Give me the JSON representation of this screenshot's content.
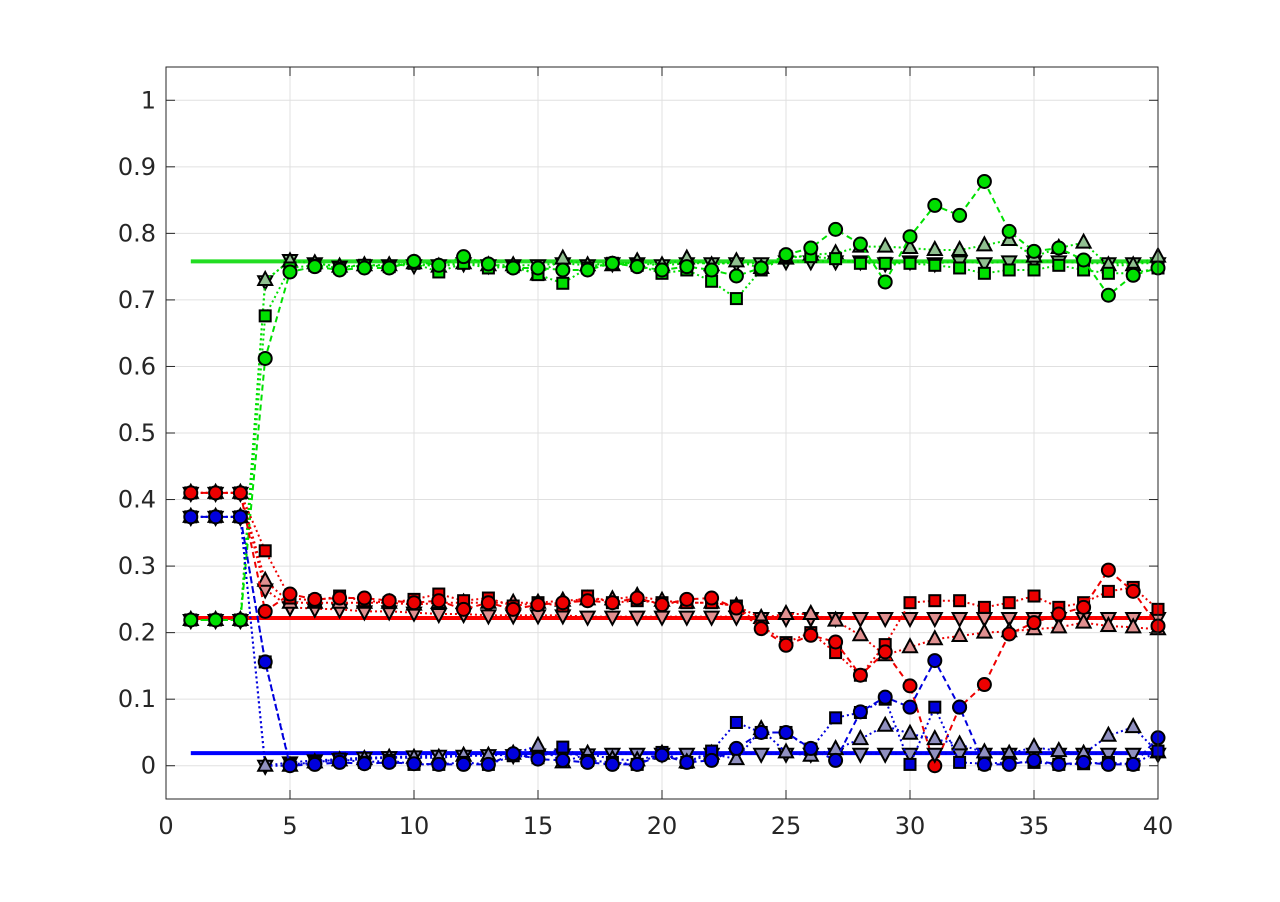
{
  "chart_data": {
    "type": "line",
    "title": "",
    "xlabel": "",
    "ylabel": "",
    "xlim": [
      0,
      40
    ],
    "ylim": [
      -0.05,
      1.05
    ],
    "grid": true,
    "x_ticks": [
      0,
      5,
      10,
      15,
      20,
      25,
      30,
      35,
      40
    ],
    "x_tick_labels": [
      "0",
      "5",
      "10",
      "15",
      "20",
      "25",
      "30",
      "35",
      "40"
    ],
    "y_ticks": [
      0,
      0.1,
      0.2,
      0.3,
      0.4,
      0.5,
      0.6,
      0.7,
      0.8,
      0.9,
      1
    ],
    "y_tick_labels": [
      "0",
      "0.1",
      "0.2",
      "0.3",
      "0.4",
      "0.5",
      "0.6",
      "0.7",
      "0.8",
      "0.9",
      "1"
    ],
    "colors": {
      "green": "#00e000",
      "red": "#ee0000",
      "blue": "#0000dd",
      "green_line": "#22dd22",
      "red_line": "#ff0000",
      "blue_line": "#0000ff",
      "green_light": "#90c090",
      "red_light": "#e09090",
      "blue_light": "#9090c0",
      "axis": "#262626",
      "grid": "#e0e0e0"
    },
    "reference_lines": [
      {
        "color": "green_line",
        "value": 0.758,
        "x": [
          1,
          40
        ]
      },
      {
        "color": "red_line",
        "value": 0.222,
        "x": [
          1,
          40
        ]
      },
      {
        "color": "blue_line",
        "value": 0.019,
        "x": [
          1,
          40
        ]
      }
    ],
    "series": [
      {
        "color": "green",
        "marker": "circle",
        "fill": "green",
        "dash": "dash",
        "values": [
          0.219,
          0.219,
          0.219,
          0.612,
          0.742,
          0.75,
          0.745,
          0.748,
          0.748,
          0.758,
          0.752,
          0.765,
          0.754,
          0.748,
          0.748,
          0.745,
          0.745,
          0.755,
          0.75,
          0.745,
          0.75,
          0.745,
          0.736,
          0.748,
          0.768,
          0.778,
          0.806,
          0.784,
          0.727,
          0.795,
          0.842,
          0.827,
          0.878,
          0.803,
          0.773,
          0.778,
          0.76,
          0.707,
          0.737,
          0.748
        ]
      },
      {
        "color": "green",
        "marker": "square",
        "fill": "green",
        "dash": "dot",
        "values": [
          0.219,
          0.219,
          0.219,
          0.676,
          0.748,
          0.752,
          0.748,
          0.752,
          0.75,
          0.755,
          0.742,
          0.755,
          0.748,
          0.75,
          0.738,
          0.725,
          0.748,
          0.755,
          0.752,
          0.74,
          0.745,
          0.728,
          0.702,
          0.745,
          0.765,
          0.765,
          0.762,
          0.755,
          0.755,
          0.755,
          0.752,
          0.748,
          0.74,
          0.745,
          0.745,
          0.752,
          0.745,
          0.74,
          0.74,
          0.748
        ]
      },
      {
        "color": "green",
        "marker": "triangle-up",
        "fill": "green_light",
        "dash": "dot",
        "values": [
          0.219,
          0.219,
          0.219,
          0.73,
          0.758,
          0.755,
          0.75,
          0.752,
          0.752,
          0.755,
          0.75,
          0.755,
          0.752,
          0.752,
          0.738,
          0.762,
          0.752,
          0.752,
          0.758,
          0.752,
          0.762,
          0.752,
          0.758,
          0.748,
          0.762,
          0.768,
          0.77,
          0.78,
          0.78,
          0.778,
          0.775,
          0.775,
          0.782,
          0.79,
          0.765,
          0.778,
          0.786,
          0.752,
          0.752,
          0.765
        ]
      },
      {
        "color": "green",
        "marker": "triangle-down",
        "fill": "green_light",
        "dash": "dot",
        "values": [
          0.219,
          0.219,
          0.219,
          0.728,
          0.76,
          0.755,
          0.75,
          0.752,
          0.752,
          0.752,
          0.752,
          0.755,
          0.752,
          0.752,
          0.752,
          0.755,
          0.752,
          0.755,
          0.755,
          0.752,
          0.755,
          0.755,
          0.755,
          0.755,
          0.758,
          0.758,
          0.758,
          0.758,
          0.755,
          0.758,
          0.755,
          0.758,
          0.755,
          0.758,
          0.758,
          0.758,
          0.755,
          0.755,
          0.755,
          0.755
        ]
      },
      {
        "color": "red",
        "marker": "circle",
        "fill": "red",
        "dash": "dash",
        "values": [
          0.41,
          0.41,
          0.41,
          0.232,
          0.258,
          0.25,
          0.252,
          0.252,
          0.248,
          0.245,
          0.248,
          0.235,
          0.245,
          0.235,
          0.242,
          0.245,
          0.248,
          0.245,
          0.252,
          0.242,
          0.25,
          0.252,
          0.237,
          0.206,
          0.181,
          0.196,
          0.186,
          0.136,
          0.171,
          0.12,
          0.0,
          0.088,
          0.122,
          0.198,
          0.215,
          0.228,
          0.238,
          0.294,
          0.262,
          0.21
        ]
      },
      {
        "color": "red",
        "marker": "square",
        "fill": "red",
        "dash": "dot",
        "values": [
          0.41,
          0.41,
          0.41,
          0.323,
          0.252,
          0.248,
          0.255,
          0.248,
          0.245,
          0.25,
          0.258,
          0.248,
          0.252,
          0.24,
          0.245,
          0.24,
          0.255,
          0.245,
          0.248,
          0.245,
          0.245,
          0.245,
          0.24,
          0.21,
          0.185,
          0.2,
          0.17,
          0.136,
          0.182,
          0.245,
          0.248,
          0.248,
          0.238,
          0.245,
          0.255,
          0.238,
          0.245,
          0.262,
          0.268,
          0.235
        ]
      },
      {
        "color": "red",
        "marker": "triangle-up",
        "fill": "red_light",
        "dash": "dot",
        "values": [
          0.41,
          0.41,
          0.41,
          0.278,
          0.245,
          0.245,
          0.245,
          0.245,
          0.245,
          0.242,
          0.245,
          0.245,
          0.245,
          0.245,
          0.245,
          0.248,
          0.25,
          0.25,
          0.255,
          0.248,
          0.245,
          0.245,
          0.24,
          0.222,
          0.228,
          0.228,
          0.218,
          0.196,
          0.166,
          0.178,
          0.19,
          0.195,
          0.2,
          0.202,
          0.205,
          0.208,
          0.215,
          0.21,
          0.208,
          0.205
        ]
      },
      {
        "color": "red",
        "marker": "triangle-down",
        "fill": "red_light",
        "dash": "dot",
        "values": [
          0.41,
          0.41,
          0.41,
          0.265,
          0.238,
          0.236,
          0.235,
          0.232,
          0.232,
          0.23,
          0.228,
          0.228,
          0.226,
          0.226,
          0.226,
          0.226,
          0.224,
          0.224,
          0.224,
          0.224,
          0.224,
          0.224,
          0.224,
          0.222,
          0.222,
          0.222,
          0.222,
          0.222,
          0.222,
          0.222,
          0.222,
          0.222,
          0.222,
          0.222,
          0.222,
          0.222,
          0.222,
          0.222,
          0.222,
          0.222
        ]
      },
      {
        "color": "blue",
        "marker": "circle",
        "fill": "blue",
        "dash": "dash",
        "values": [
          0.374,
          0.374,
          0.374,
          0.156,
          0.0,
          0.002,
          0.005,
          0.003,
          0.005,
          0.003,
          0.002,
          0.002,
          0.002,
          0.018,
          0.01,
          0.008,
          0.005,
          0.002,
          0.002,
          0.016,
          0.005,
          0.008,
          0.026,
          0.05,
          0.05,
          0.026,
          0.008,
          0.081,
          0.103,
          0.088,
          0.158,
          0.088,
          0.002,
          0.002,
          0.008,
          0.002,
          0.005,
          0.002,
          0.002,
          0.042
        ]
      },
      {
        "color": "blue",
        "marker": "square",
        "fill": "blue",
        "dash": "dot",
        "values": [
          0.374,
          0.374,
          0.374,
          0.156,
          0.002,
          0.005,
          0.01,
          0.005,
          0.008,
          0.002,
          0.002,
          0.005,
          0.002,
          0.015,
          0.012,
          0.028,
          0.008,
          0.005,
          0.002,
          0.02,
          0.005,
          0.022,
          0.065,
          0.05,
          0.05,
          0.025,
          0.072,
          0.08,
          0.1,
          0.002,
          0.088,
          0.005,
          0.003,
          0.005,
          0.005,
          0.002,
          0.003,
          0.005,
          0.002,
          0.022
        ]
      },
      {
        "color": "blue",
        "marker": "triangle-up",
        "fill": "blue_light",
        "dash": "dot",
        "values": [
          0.374,
          0.374,
          0.374,
          0.0,
          0.0,
          0.005,
          0.008,
          0.01,
          0.012,
          0.012,
          0.012,
          0.015,
          0.015,
          0.018,
          0.03,
          0.005,
          0.018,
          0.01,
          0.008,
          0.018,
          0.005,
          0.018,
          0.01,
          0.055,
          0.02,
          0.015,
          0.025,
          0.04,
          0.06,
          0.048,
          0.04,
          0.032,
          0.02,
          0.018,
          0.028,
          0.022,
          0.018,
          0.045,
          0.058,
          0.02
        ]
      },
      {
        "color": "blue",
        "marker": "triangle-down",
        "fill": "blue_light",
        "dash": "dot",
        "values": [
          0.374,
          0.374,
          0.374,
          0.0,
          0.005,
          0.008,
          0.01,
          0.012,
          0.013,
          0.014,
          0.015,
          0.015,
          0.016,
          0.016,
          0.017,
          0.017,
          0.017,
          0.018,
          0.018,
          0.018,
          0.018,
          0.018,
          0.018,
          0.018,
          0.018,
          0.018,
          0.018,
          0.018,
          0.018,
          0.018,
          0.018,
          0.018,
          0.018,
          0.018,
          0.018,
          0.018,
          0.018,
          0.018,
          0.018,
          0.018
        ]
      }
    ]
  }
}
